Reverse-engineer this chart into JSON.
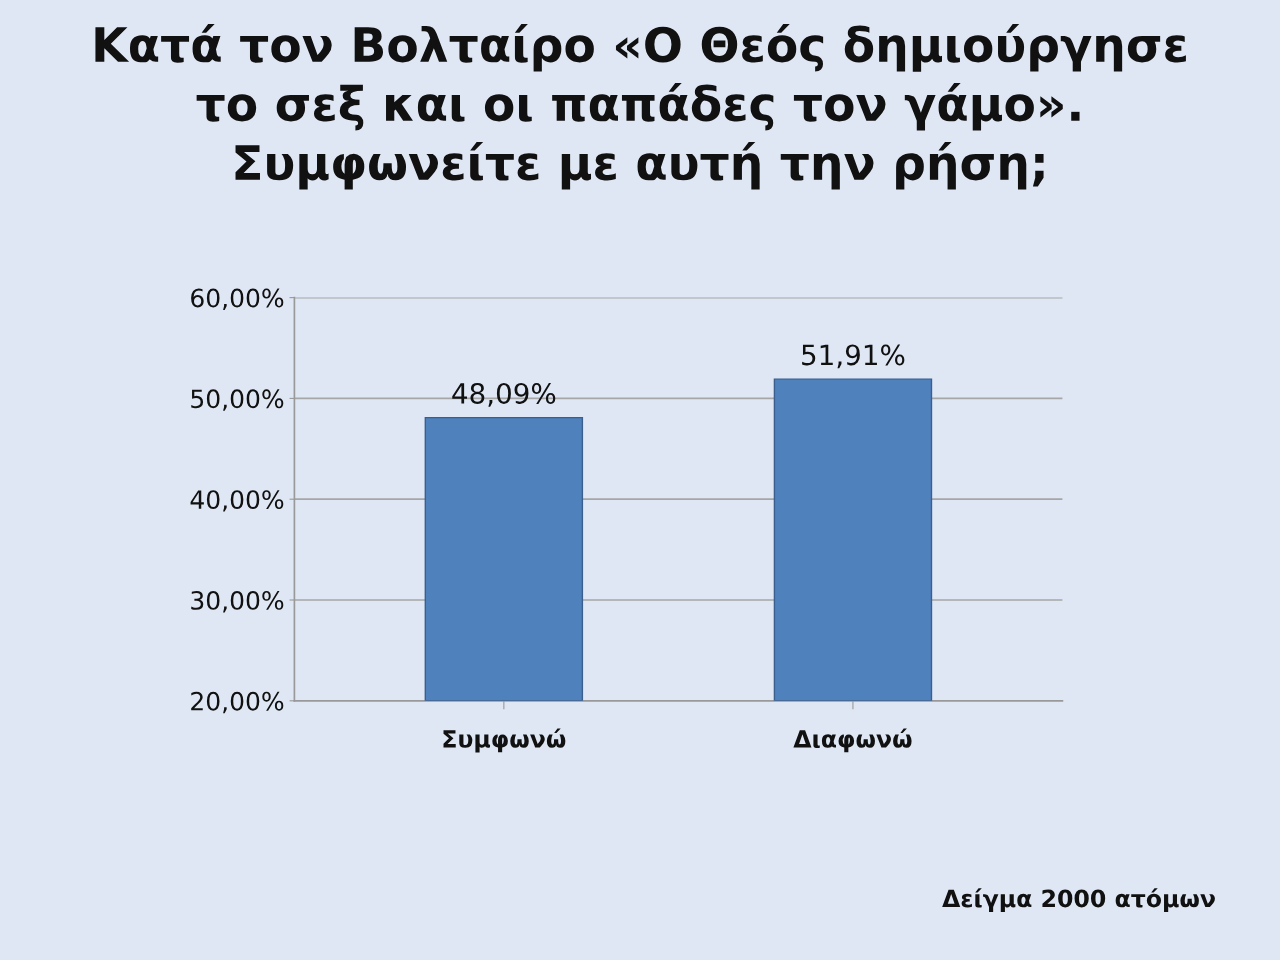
{
  "chart_data": {
    "type": "bar",
    "title": "Κατά τον Βολταίρο «Ο Θεός δημιούργησε\nτο σεξ και οι παπάδες τον γάμο».\nΣυμφωνείτε με αυτή την ρήση;",
    "categories": [
      "Συμφωνώ",
      "Διαφωνώ"
    ],
    "values": [
      48.09,
      51.91
    ],
    "color": "#4f81bd",
    "value_labels": [
      "48,09%",
      "51,91%"
    ],
    "ylim": [
      20,
      60
    ],
    "yticks": [
      {
        "value": 20,
        "label": "20,00%"
      },
      {
        "value": 30,
        "label": "30,00%"
      },
      {
        "value": 40,
        "label": "40,00%"
      },
      {
        "value": 50,
        "label": "50,00%"
      },
      {
        "value": 60,
        "label": "60,00%"
      }
    ],
    "grid": "y",
    "annotations": [
      "Δείγμα 2000 ατόμων"
    ]
  }
}
